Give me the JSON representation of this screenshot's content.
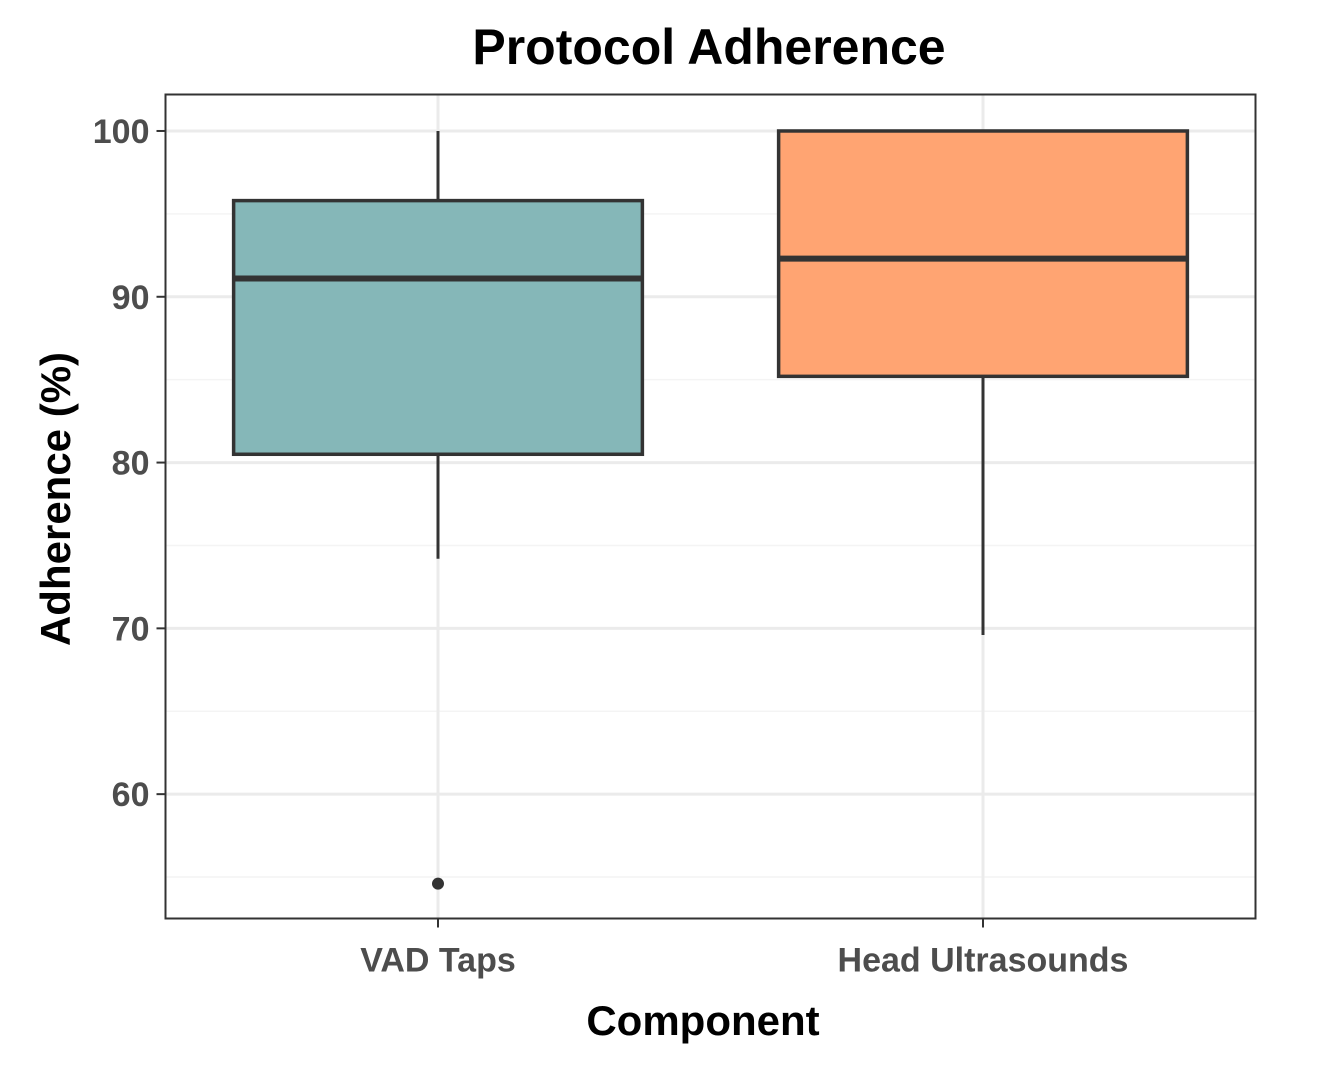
{
  "chart_data": {
    "type": "box",
    "title": "Protocol Adherence",
    "xlabel": "Component",
    "ylabel": "Adherence (%)",
    "ylim": [
      52.5,
      102.2
    ],
    "yticks": [
      60,
      70,
      80,
      90,
      100
    ],
    "ytick_labels": [
      "60",
      "70",
      "80",
      "90",
      "100"
    ],
    "grid": true,
    "legend": "none",
    "categories": [
      "VAD Taps",
      "Head Ultrasounds"
    ],
    "series": [
      {
        "category": "VAD Taps",
        "whisker_low": 74.2,
        "q1": 80.5,
        "median": 91.1,
        "q3": 95.8,
        "whisker_high": 100,
        "outliers": [
          54.6
        ],
        "color": "#85b7b8"
      },
      {
        "category": "Head Ultrasounds",
        "whisker_low": 69.6,
        "q1": 85.2,
        "median": 92.3,
        "q3": 100,
        "whisker_high": 100,
        "outliers": [],
        "color": "#ffa472"
      }
    ],
    "colors": {
      "box_stroke": "#333333",
      "grid_major": "#ebebeb",
      "grid_minor": "#f4f4f4",
      "panel_border": "#333333",
      "tick_text": "#4d4d4d"
    }
  }
}
